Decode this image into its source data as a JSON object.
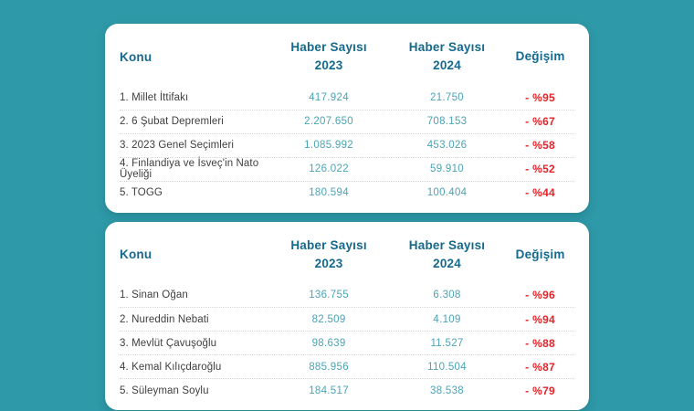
{
  "colors": {
    "background": "#2E99A8",
    "card": "#FFFFFF",
    "header_text": "#15698F",
    "topic_text": "#3F3F3F",
    "number_text": "#4BA3B5",
    "negative_change": "#E3242B"
  },
  "chart_data": [
    {
      "type": "table",
      "columns": {
        "topic": "Konu",
        "metric": "Haber Sayısı",
        "year_2023": "2023",
        "year_2024": "2024",
        "change": "Değişim"
      },
      "rows": [
        {
          "topic": "1. Millet İttifakı",
          "y2023": "417.924",
          "y2024": "21.750",
          "change": "- %95"
        },
        {
          "topic": "2. 6 Şubat Depremleri",
          "y2023": "2.207.650",
          "y2024": "708.153",
          "change": "- %67"
        },
        {
          "topic": "3. 2023 Genel Seçimleri",
          "y2023": "1.085.992",
          "y2024": "453.026",
          "change": "- %58"
        },
        {
          "topic": "4. Finlandiya ve İsveç'in Nato Üyeliği",
          "y2023": "126.022",
          "y2024": "59.910",
          "change": "- %52"
        },
        {
          "topic": "5. TOGG",
          "y2023": "180.594",
          "y2024": "100.404",
          "change": "- %44"
        }
      ]
    },
    {
      "type": "table",
      "columns": {
        "topic": "Konu",
        "metric": "Haber Sayısı",
        "year_2023": "2023",
        "year_2024": "2024",
        "change": "Değişim"
      },
      "rows": [
        {
          "topic": "1. Sinan Oğan",
          "y2023": "136.755",
          "y2024": "6.308",
          "change": "- %96"
        },
        {
          "topic": "2. Nureddin Nebati",
          "y2023": "82.509",
          "y2024": "4.109",
          "change": "- %94"
        },
        {
          "topic": "3. Mevlüt Çavuşoğlu",
          "y2023": "98.639",
          "y2024": "11.527",
          "change": "- %88"
        },
        {
          "topic": "4. Kemal Kılıçdaroğlu",
          "y2023": "885.956",
          "y2024": "110.504",
          "change": "- %87"
        },
        {
          "topic": "5. Süleyman Soylu",
          "y2023": "184.517",
          "y2024": "38.538",
          "change": "- %79"
        }
      ]
    }
  ]
}
